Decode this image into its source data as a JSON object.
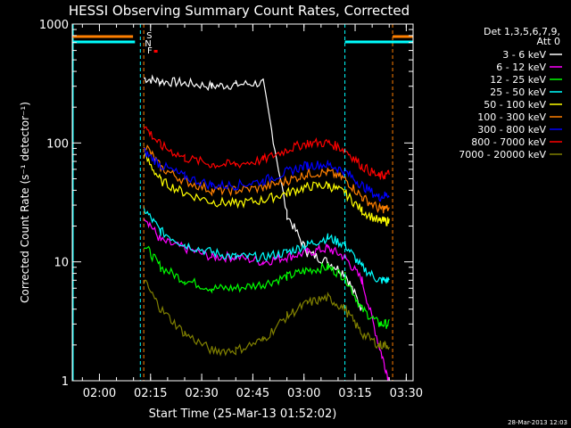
{
  "chart_data": {
    "type": "line",
    "title": "HESSI Observing Summary Count Rates, Corrected",
    "xlabel": "Start Time (25-Mar-13 01:52:02)",
    "ylabel": "Corrected Count Rate (s⁻¹ detector⁻¹)",
    "y_scale": "log",
    "ylim": [
      1,
      1000
    ],
    "xlim": [
      "01:52:02",
      "03:32:00"
    ],
    "y_ticks": [
      {
        "value": 1,
        "label": "1"
      },
      {
        "value": 10,
        "label": "10"
      },
      {
        "value": 100,
        "label": "100"
      },
      {
        "value": 1000,
        "label": "1000"
      }
    ],
    "x_ticks": [
      "02:00",
      "02:15",
      "02:30",
      "02:45",
      "03:00",
      "03:15",
      "03:30"
    ],
    "legend": {
      "placement": "right",
      "header": [
        "Det 1,3,5,6,7,9,",
        "Att 0"
      ]
    },
    "flags": [
      {
        "label": "S",
        "color": "#ff7f00"
      },
      {
        "label": "N",
        "color": "#00ffff"
      },
      {
        "label": "F",
        "color": "#ff0000"
      }
    ],
    "gap_markers": {
      "cyan": [
        "02:12",
        "03:12"
      ],
      "orange": [
        "02:13",
        "03:26"
      ]
    },
    "x": [
      "02:13",
      "02:18",
      "02:25",
      "02:33",
      "02:40",
      "02:48",
      "02:55",
      "03:01",
      "03:07",
      "03:12",
      "03:17",
      "03:22",
      "03:25"
    ],
    "series": [
      {
        "name": "3 - 6 keV",
        "color": "#ffffff",
        "values": [
          350,
          330,
          320,
          300,
          310,
          320,
          25,
          12,
          10,
          8,
          4,
          null,
          null
        ]
      },
      {
        "name": "6 - 12 keV",
        "color": "#ff00ff",
        "values": [
          25,
          15,
          13,
          11,
          11,
          10,
          11,
          12,
          13,
          11,
          7,
          2,
          1
        ]
      },
      {
        "name": "12 - 25 keV",
        "color": "#00ff00",
        "values": [
          14,
          9,
          7,
          6,
          6,
          6.5,
          7.5,
          8.5,
          9,
          7.5,
          4,
          3,
          3
        ]
      },
      {
        "name": "25 - 50 keV",
        "color": "#00ffff",
        "values": [
          28,
          18,
          14,
          12,
          11,
          11,
          12,
          14,
          16,
          14,
          9,
          7,
          7
        ]
      },
      {
        "name": "50 - 100 keV",
        "color": "#ffff00",
        "values": [
          80,
          48,
          38,
          32,
          31,
          33,
          38,
          43,
          44,
          38,
          27,
          22,
          22
        ]
      },
      {
        "name": "100 - 300 keV",
        "color": "#ff7f00",
        "values": [
          100,
          62,
          48,
          40,
          40,
          42,
          48,
          55,
          57,
          50,
          35,
          28,
          28
        ]
      },
      {
        "name": "300 - 800 keV",
        "color": "#0000ff",
        "values": [
          85,
          65,
          52,
          44,
          44,
          48,
          57,
          65,
          66,
          58,
          44,
          35,
          37
        ]
      },
      {
        "name": "800 - 7000 keV",
        "color": "#ff0000",
        "values": [
          140,
          95,
          75,
          66,
          66,
          72,
          88,
          100,
          100,
          88,
          64,
          52,
          55
        ]
      },
      {
        "name": "7000 - 20000 keV",
        "color": "#808000",
        "values": [
          7,
          4,
          2.5,
          1.8,
          1.8,
          2.2,
          3.5,
          4.5,
          5,
          4,
          2.5,
          2,
          2
        ]
      }
    ],
    "timestamp": "28-Mar-2013 12:03"
  }
}
